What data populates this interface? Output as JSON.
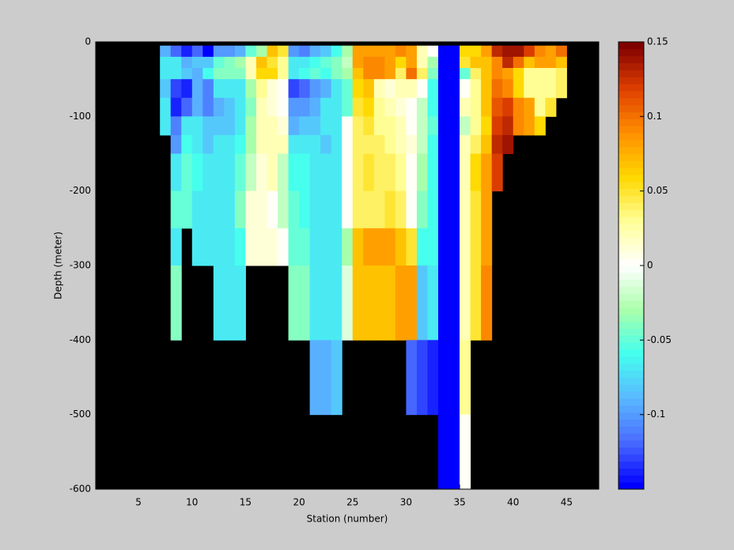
{
  "chart_data": {
    "type": "heatmap",
    "xlabel": "Station (number)",
    "ylabel": "Depth (meter)",
    "xlim": [
      1,
      48
    ],
    "ylim": [
      -600,
      0
    ],
    "xticks": [
      5,
      10,
      15,
      20,
      25,
      30,
      35,
      40,
      45
    ],
    "yticks": [
      0,
      -100,
      -200,
      -300,
      -400,
      -500,
      -600
    ],
    "background": "#000000",
    "x": [
      7,
      8,
      9,
      10,
      11,
      12,
      13,
      14,
      15,
      16,
      17,
      18,
      19,
      20,
      21,
      22,
      23,
      24,
      25,
      26,
      27,
      28,
      29,
      30,
      31,
      32,
      33,
      34,
      35,
      36,
      37,
      38,
      39,
      40,
      41,
      42,
      43,
      44
    ],
    "depth_edges": [
      -5,
      -20,
      -35,
      -50,
      -75,
      -100,
      -125,
      -150,
      -200,
      -250,
      -300,
      -400,
      -500,
      -600
    ],
    "values": [
      [
        -0.09,
        -0.07,
        -0.07,
        -0.08,
        -0.07,
        -0.07,
        null,
        null,
        null,
        null,
        null,
        null,
        null
      ],
      [
        -0.12,
        -0.07,
        -0.07,
        -0.13,
        -0.14,
        -0.11,
        -0.1,
        -0.07,
        -0.05,
        -0.07,
        -0.04,
        null,
        null
      ],
      [
        -0.14,
        -0.09,
        -0.08,
        -0.14,
        -0.12,
        -0.07,
        -0.06,
        -0.05,
        -0.05,
        null,
        null,
        null,
        null
      ],
      [
        -0.12,
        -0.08,
        -0.09,
        -0.09,
        -0.09,
        -0.07,
        -0.07,
        -0.06,
        -0.07,
        -0.07,
        null,
        null,
        null
      ],
      [
        -0.15,
        -0.08,
        -0.06,
        -0.11,
        -0.11,
        -0.08,
        -0.08,
        -0.07,
        -0.07,
        -0.07,
        null,
        null,
        null
      ],
      [
        -0.1,
        -0.05,
        -0.04,
        -0.07,
        -0.09,
        -0.08,
        -0.07,
        -0.07,
        -0.07,
        -0.07,
        -0.07,
        null,
        null
      ],
      [
        -0.1,
        -0.04,
        -0.04,
        -0.07,
        -0.08,
        -0.08,
        -0.07,
        -0.07,
        -0.07,
        -0.07,
        -0.07,
        null,
        null
      ],
      [
        -0.09,
        -0.03,
        -0.04,
        -0.07,
        -0.07,
        -0.07,
        -0.06,
        -0.05,
        -0.04,
        -0.06,
        -0.07,
        null,
        null
      ],
      [
        -0.05,
        0.02,
        0.02,
        -0.03,
        -0.04,
        -0.03,
        -0.03,
        -0.02,
        0.01,
        0.01,
        null,
        null,
        null
      ],
      [
        -0.03,
        0.07,
        0.06,
        0.03,
        0.02,
        0.02,
        0.02,
        0.01,
        0.01,
        0.01,
        null,
        null,
        null
      ],
      [
        0.07,
        0.05,
        0.06,
        0.01,
        0.01,
        0.02,
        0.02,
        0.02,
        0,
        0.01,
        null,
        null,
        null
      ],
      [
        0.05,
        0.03,
        0.03,
        0,
        0,
        0.01,
        0.02,
        -0.02,
        -0.02,
        0,
        null,
        null,
        null
      ],
      [
        -0.1,
        -0.07,
        -0.07,
        -0.13,
        -0.1,
        -0.09,
        -0.07,
        -0.06,
        -0.05,
        -0.05,
        -0.04,
        null,
        null
      ],
      [
        -0.11,
        -0.07,
        -0.06,
        -0.12,
        -0.1,
        -0.08,
        -0.07,
        -0.06,
        -0.06,
        -0.05,
        -0.04,
        null,
        null
      ],
      [
        -0.09,
        -0.06,
        -0.05,
        -0.1,
        -0.09,
        -0.08,
        -0.07,
        -0.07,
        -0.07,
        -0.07,
        -0.07,
        -0.09,
        null
      ],
      [
        -0.08,
        -0.05,
        -0.06,
        -0.09,
        -0.07,
        -0.07,
        -0.08,
        -0.07,
        -0.07,
        -0.07,
        -0.07,
        -0.09,
        null
      ],
      [
        -0.06,
        -0.04,
        -0.04,
        -0.07,
        -0.07,
        -0.07,
        -0.07,
        -0.07,
        -0.07,
        -0.07,
        -0.07,
        -0.08,
        null
      ],
      [
        -0.03,
        -0.02,
        -0.03,
        -0.05,
        -0.05,
        0,
        0,
        0,
        0,
        -0.03,
        -0.01,
        null,
        null
      ],
      [
        0.08,
        0.08,
        0.07,
        0.06,
        0.05,
        0.04,
        0.04,
        0.04,
        0.04,
        0.07,
        0.07,
        null,
        null
      ],
      [
        0.08,
        0.09,
        0.09,
        0.07,
        0.06,
        0.05,
        0.04,
        0.05,
        0.04,
        0.08,
        0.07,
        null,
        null
      ],
      [
        0.08,
        0.09,
        0.09,
        0.02,
        0.03,
        0.03,
        0.04,
        0.04,
        0.04,
        0.08,
        0.07,
        null,
        null
      ],
      [
        0.08,
        0.08,
        0.08,
        0.01,
        0.02,
        0.03,
        0.03,
        0.04,
        0.05,
        0.08,
        0.07,
        null,
        null
      ],
      [
        0.09,
        0.06,
        0.04,
        0.02,
        0.01,
        0.02,
        0.02,
        0.03,
        0.04,
        0.07,
        0.08,
        null,
        null
      ],
      [
        0.08,
        0.08,
        0.1,
        0.02,
        0,
        0,
        0.01,
        0,
        0,
        0.05,
        0.08,
        -0.12,
        null
      ],
      [
        0.02,
        0.02,
        0.04,
        0,
        -0.02,
        -0.02,
        -0.02,
        -0.03,
        -0.04,
        -0.06,
        -0.08,
        -0.13,
        null
      ],
      [
        0,
        -0.03,
        -0.04,
        -0.06,
        -0.06,
        -0.05,
        -0.06,
        -0.06,
        -0.06,
        -0.06,
        -0.07,
        -0.14,
        null
      ],
      [
        -0.15,
        -0.15,
        -0.15,
        -0.15,
        -0.15,
        -0.15,
        -0.15,
        -0.15,
        -0.15,
        -0.15,
        -0.15,
        -0.15,
        -0.15
      ],
      [
        -0.15,
        -0.15,
        -0.15,
        -0.15,
        -0.15,
        -0.15,
        -0.15,
        -0.15,
        -0.15,
        -0.15,
        -0.15,
        -0.15,
        -0.15
      ],
      [
        0.06,
        0.05,
        -0.05,
        0,
        0.02,
        -0.02,
        0.02,
        0.02,
        0.02,
        0.02,
        0.02,
        0.03,
        0
      ],
      [
        0.06,
        0.07,
        0.04,
        0.03,
        0.03,
        0.03,
        0.04,
        0.06,
        0.05,
        0.05,
        0.05,
        null,
        null
      ],
      [
        0.08,
        0.07,
        0.07,
        0.07,
        0.07,
        0.06,
        0.07,
        0.08,
        0.08,
        0.08,
        0.09,
        null,
        null
      ],
      [
        0.13,
        0.09,
        0.09,
        0.1,
        0.11,
        0.12,
        0.13,
        0.12,
        null,
        null,
        null,
        null,
        null
      ],
      [
        0.14,
        0.13,
        0.08,
        0.09,
        0.12,
        0.13,
        0.14,
        null,
        null,
        null,
        null,
        null,
        null
      ],
      [
        0.14,
        0.1,
        0.06,
        0.06,
        0.09,
        0.09,
        null,
        null,
        null,
        null,
        null,
        null,
        null
      ],
      [
        0.12,
        0.07,
        0.03,
        0.03,
        0.08,
        0.08,
        null,
        null,
        null,
        null,
        null,
        null,
        null
      ],
      [
        0.09,
        0.08,
        0.03,
        0.03,
        0.03,
        0.06,
        null,
        null,
        null,
        null,
        null,
        null,
        null
      ],
      [
        0.08,
        0.08,
        0.03,
        0.03,
        0.05,
        null,
        null,
        null,
        null,
        null,
        null,
        null,
        null
      ],
      [
        0.1,
        0.07,
        0.04,
        0.04,
        null,
        null,
        null,
        null,
        null,
        null,
        null,
        null,
        null
      ]
    ],
    "clim": [
      -0.15,
      0.15
    ],
    "colorbar_ticks": [
      0.15,
      0.1,
      0.05,
      0,
      -0.05,
      -0.1
    ],
    "colormap": [
      "#0000ff",
      "#4a6cff",
      "#5ab8ff",
      "#44ffee",
      "#aaffaa",
      "#ffffff",
      "#ffff99",
      "#ffd800",
      "#ff9000",
      "#e04000",
      "#800000"
    ]
  }
}
